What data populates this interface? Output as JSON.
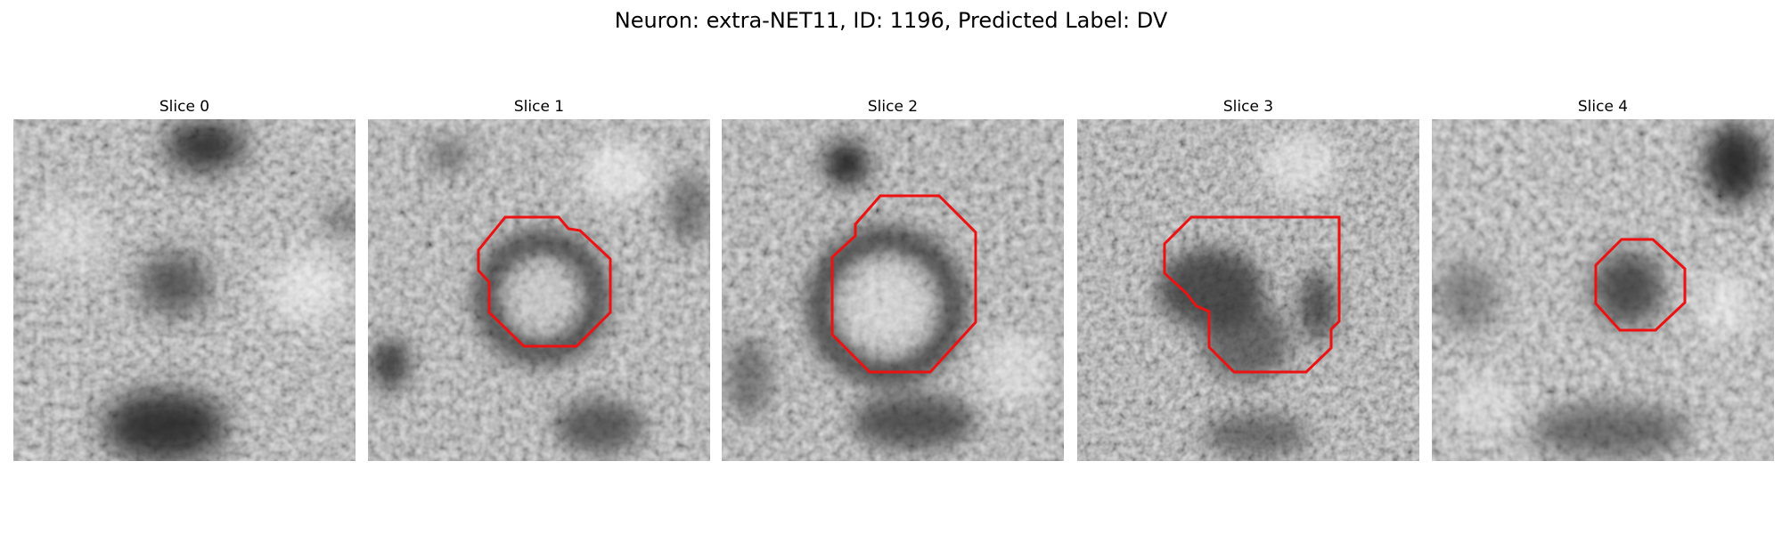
{
  "figure": {
    "title": "Neuron: extra-NET11, ID: 1196, Predicted Label: DV"
  },
  "outline_color": "#ee1111",
  "panels": [
    {
      "title": "Slice 0",
      "has_outline": false
    },
    {
      "title": "Slice 1",
      "has_outline": true
    },
    {
      "title": "Slice 2",
      "has_outline": true
    },
    {
      "title": "Slice 3",
      "has_outline": true
    },
    {
      "title": "Slice 4",
      "has_outline": true
    }
  ]
}
